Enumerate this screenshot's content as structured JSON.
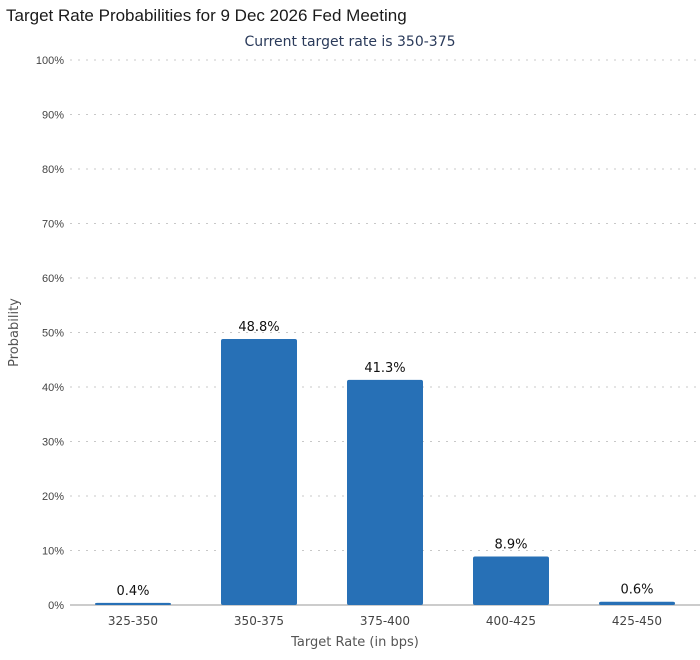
{
  "chart_data": {
    "type": "bar",
    "title": "Target Rate Probabilities for 9 Dec 2026 Fed Meeting",
    "subtitle": "Current target rate is 350-375",
    "xlabel": "Target Rate (in bps)",
    "ylabel": "Probability",
    "categories": [
      "325-350",
      "350-375",
      "375-400",
      "400-425",
      "425-450"
    ],
    "values": [
      0.4,
      48.8,
      41.3,
      8.9,
      0.6
    ],
    "data_labels": [
      "0.4%",
      "48.8%",
      "41.3%",
      "8.9%",
      "0.6%"
    ],
    "ylim": [
      0,
      100
    ],
    "yticks": [
      0,
      10,
      20,
      30,
      40,
      50,
      60,
      70,
      80,
      90,
      100
    ],
    "ytick_labels": [
      "0%",
      "10%",
      "20%",
      "30%",
      "40%",
      "50%",
      "60%",
      "70%",
      "80%",
      "90%",
      "100%"
    ],
    "grid": true,
    "bar_color": "#2770b6"
  }
}
